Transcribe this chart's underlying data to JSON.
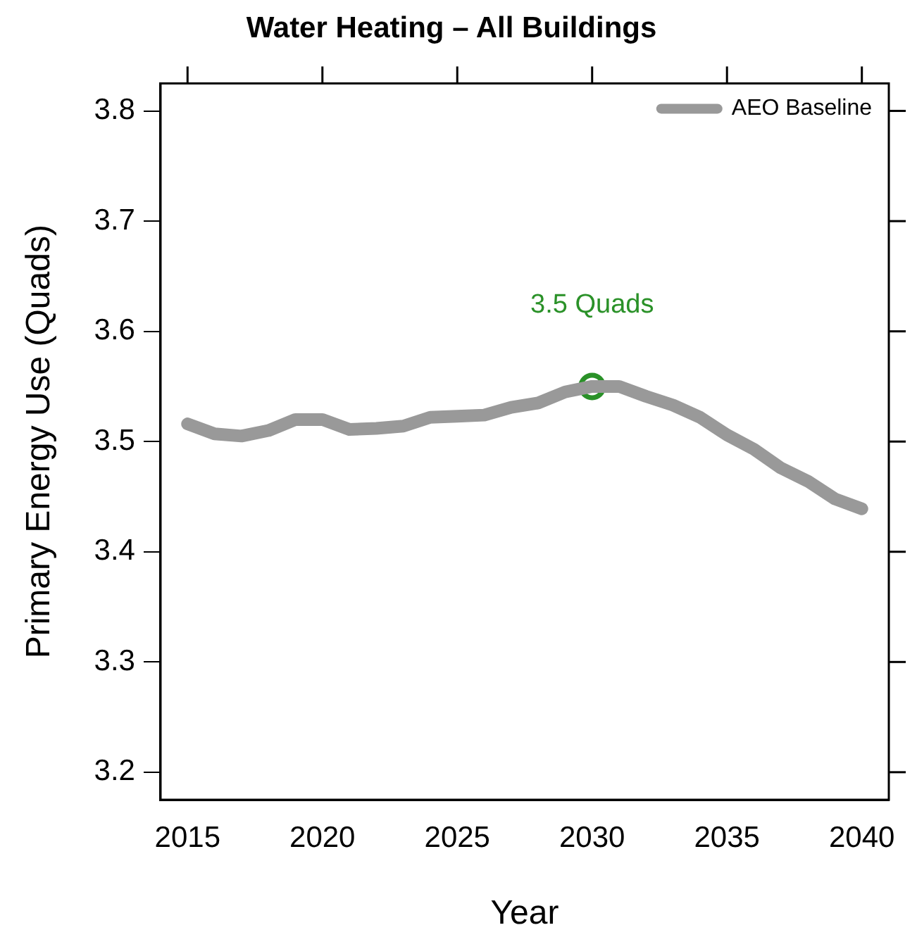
{
  "chart_data": {
    "type": "line",
    "title": "Water Heating – All Buildings",
    "xlabel": "Year",
    "ylabel": "Primary Energy Use (Quads)",
    "xlim": [
      2014,
      2041
    ],
    "xticks": [
      2015,
      2020,
      2025,
      2030,
      2035,
      2040
    ],
    "ylim": [
      3.175,
      3.825
    ],
    "yticks": [
      3.2,
      3.3,
      3.4,
      3.5,
      3.6,
      3.7,
      3.8
    ],
    "grid": false,
    "legend": "top right",
    "marker": "none",
    "line_style": "solid",
    "series": [
      {
        "name": "AEO Baseline",
        "color": "#999999",
        "x": [
          2015,
          2016,
          2017,
          2018,
          2019,
          2020,
          2021,
          2022,
          2023,
          2024,
          2025,
          2026,
          2027,
          2028,
          2029,
          2030,
          2031,
          2032,
          2033,
          2034,
          2035,
          2036,
          2037,
          2038,
          2039,
          2040
        ],
        "values": [
          3.516,
          3.507,
          3.505,
          3.51,
          3.52,
          3.52,
          3.511,
          3.512,
          3.514,
          3.522,
          3.523,
          3.524,
          3.531,
          3.535,
          3.545,
          3.55,
          3.55,
          3.541,
          3.533,
          3.522,
          3.506,
          3.493,
          3.476,
          3.464,
          3.448,
          3.439
        ]
      },
      {
        "type": "scatter",
        "marker": "circle",
        "color": "#2a9128",
        "x": [
          2030
        ],
        "values": [
          3.55
        ]
      }
    ],
    "annotations": [
      {
        "text": "3.5 Quads",
        "x": 2030,
        "y": 3.55
      }
    ]
  }
}
